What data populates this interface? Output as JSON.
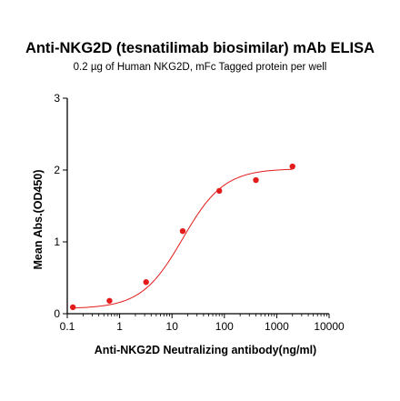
{
  "chart_data": {
    "type": "scatter",
    "title": "Anti-NKG2D (tesnatilimab biosimilar) mAb ELISA",
    "subtitle": "0.2 µg of Human NKG2D, mFc Tagged protein per well",
    "xlabel": "Anti-NKG2D Neutralizing antibody(ng/ml)",
    "ylabel": "Mean Abs.(OD450)",
    "x_scale": "log",
    "xlim": [
      0.1,
      10000
    ],
    "ylim": [
      0,
      3
    ],
    "x_ticks": [
      "0.1",
      "1",
      "10",
      "100",
      "1000",
      "10000"
    ],
    "y_ticks": [
      "0",
      "1",
      "2",
      "3"
    ],
    "grid": false,
    "series": [
      {
        "color": "#e31b1b",
        "points": [
          {
            "x": 0.128,
            "y": 0.09
          },
          {
            "x": 0.64,
            "y": 0.18
          },
          {
            "x": 3.2,
            "y": 0.44
          },
          {
            "x": 16,
            "y": 1.15
          },
          {
            "x": 80,
            "y": 1.71
          },
          {
            "x": 400,
            "y": 1.86
          },
          {
            "x": 2000,
            "y": 2.05
          }
        ],
        "fit": {
          "type": "4PL",
          "bottom": 0.07,
          "top": 2.02,
          "ec50": 16,
          "hill": 1.1
        }
      }
    ]
  }
}
